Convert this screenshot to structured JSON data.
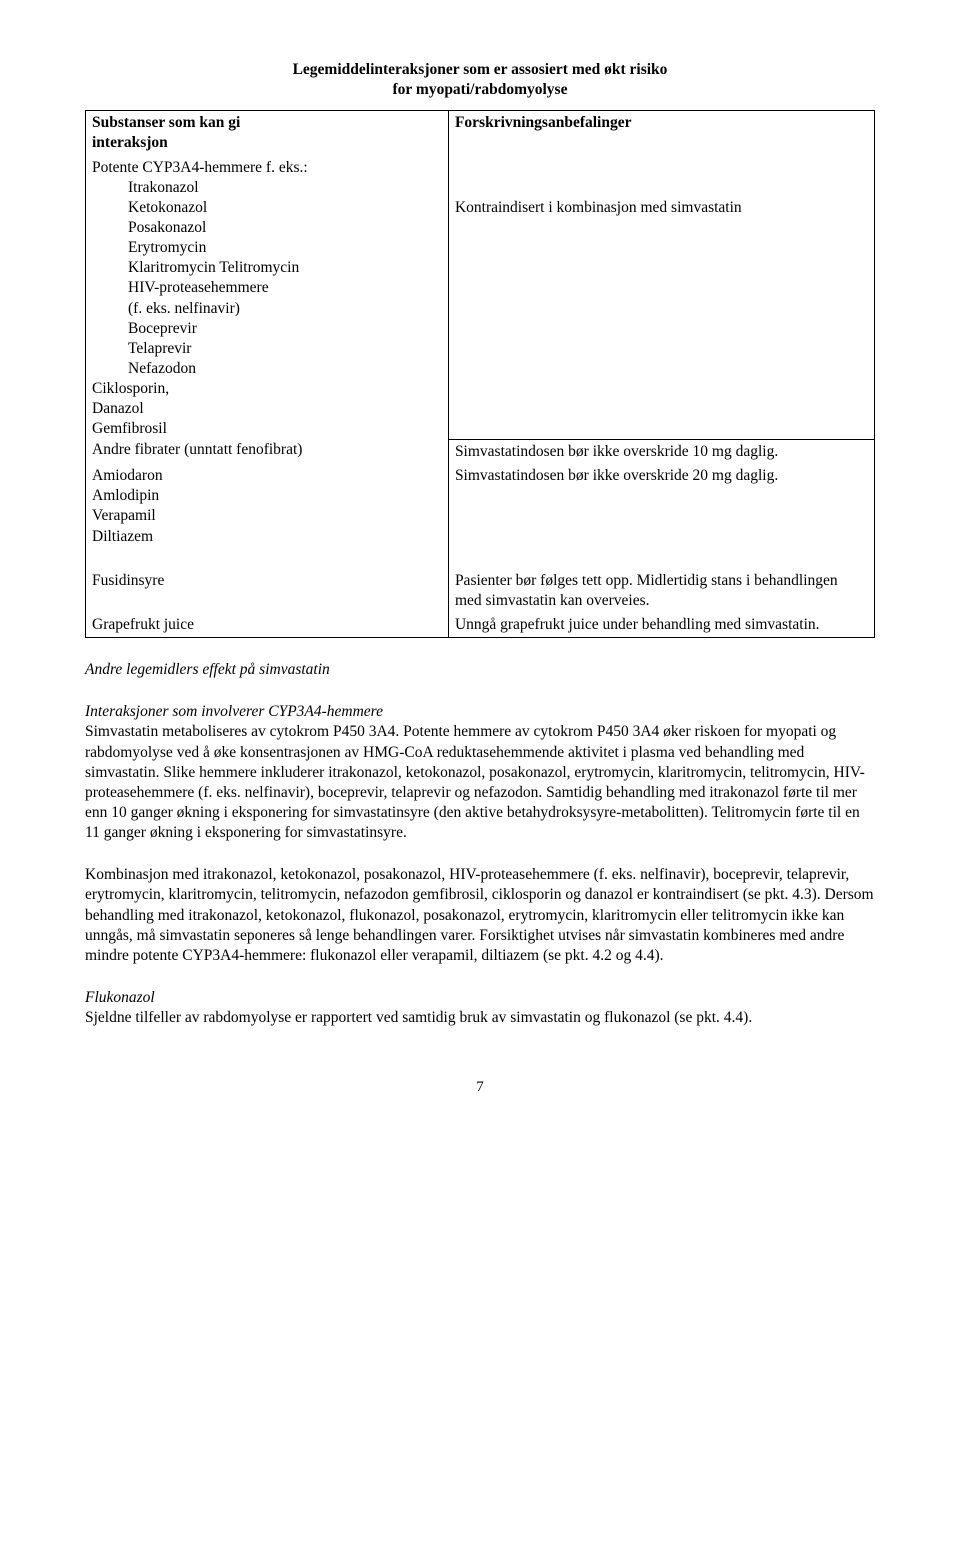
{
  "title_line1": "Legemiddelinteraksjoner som er assosiert med økt risiko",
  "title_line2": "for myopati/rabdomyolyse",
  "table": {
    "header_left_l1": "Substanser som kan gi",
    "header_left_l2": "interaksjon",
    "header_right": "Forskrivningsanbefalinger",
    "row2_left": "Potente CYP3A4-hemmere f. eks.:",
    "row2_list": {
      "i1": "Itrakonazol",
      "i2": "Ketokonazol",
      "i3": "Posakonazol",
      "i4": "Erytromycin",
      "i5": "Klaritromycin Telitromycin",
      "i6": "HIV-proteasehemmere",
      "i7": "(f. eks. nelfinavir)",
      "i8": "Boceprevir",
      "i9": "Telaprevir",
      "i10": "Nefazodon"
    },
    "row2_extra_l1": "Ciklosporin,",
    "row2_extra_l2": "Danazol",
    "row2_extra_l3": "Gemfibrosil",
    "row2_right": "Kontraindisert i kombinasjon med simvastatin",
    "row3_left": "Andre fibrater (unntatt fenofibrat)",
    "row3_right": "Simvastatindosen bør ikke overskride 10 mg daglig.",
    "row4_left_l1": "Amiodaron",
    "row4_left_l2": "Amlodipin",
    "row4_left_l3": "Verapamil",
    "row4_left_l4": "Diltiazem",
    "row4_right": "Simvastatindosen bør ikke overskride 20 mg daglig.",
    "row5_left": "Fusidinsyre",
    "row5_right": "Pasienter bør følges tett opp. Midlertidig stans i behandlingen med simvastatin kan overveies.",
    "row6_left": "Grapefrukt juice",
    "row6_right": "Unngå grapefrukt juice under behandling med simvastatin."
  },
  "section1_heading": "Andre legemidlers effekt på simvastatin",
  "section2_heading": "Interaksjoner som involverer CYP3A4-hemmere",
  "para1": "Simvastatin metaboliseres av cytokrom P450 3A4. Potente hemmere av cytokrom P450 3A4 øker riskoen for myopati og rabdomyolyse ved å øke konsentrasjonen av HMG-CoA reduktasehemmende aktivitet i plasma ved behandling med simvastatin. Slike hemmere inkluderer itrakonazol, ketokonazol, posakonazol, erytromycin, klaritromycin, telitromycin, HIV- proteasehemmere (f. eks. nelfinavir), boceprevir, telaprevir og nefazodon. Samtidig behandling med itrakonazol førte til mer enn 10 ganger økning i eksponering for simvastatinsyre (den aktive betahydroksysyre-metabolitten). Telitromycin førte til en 11 ganger økning i eksponering for simvastatinsyre.",
  "para2": "Kombinasjon med itrakonazol, ketokonazol, posakonazol, HIV-proteasehemmere (f. eks. nelfinavir), boceprevir, telaprevir, erytromycin, klaritromycin, telitromycin, nefazodon gemfibrosil, ciklosporin og danazol er kontraindisert (se pkt. 4.3). Dersom behandling med itrakonazol, ketokonazol, flukonazol, posakonazol, erytromycin, klaritromycin eller telitromycin ikke kan unngås, må simvastatin seponeres så lenge behandlingen varer. Forsiktighet utvises når simvastatin kombineres med andre mindre potente CYP3A4-hemmere: flukonazol eller verapamil, diltiazem (se pkt. 4.2 og 4.4).",
  "section3_heading": "Flukonazol",
  "para3": "Sjeldne tilfeller av rabdomyolyse er rapportert ved samtidig bruk av simvastatin og flukonazol (se pkt. 4.4).",
  "page_number": "7"
}
